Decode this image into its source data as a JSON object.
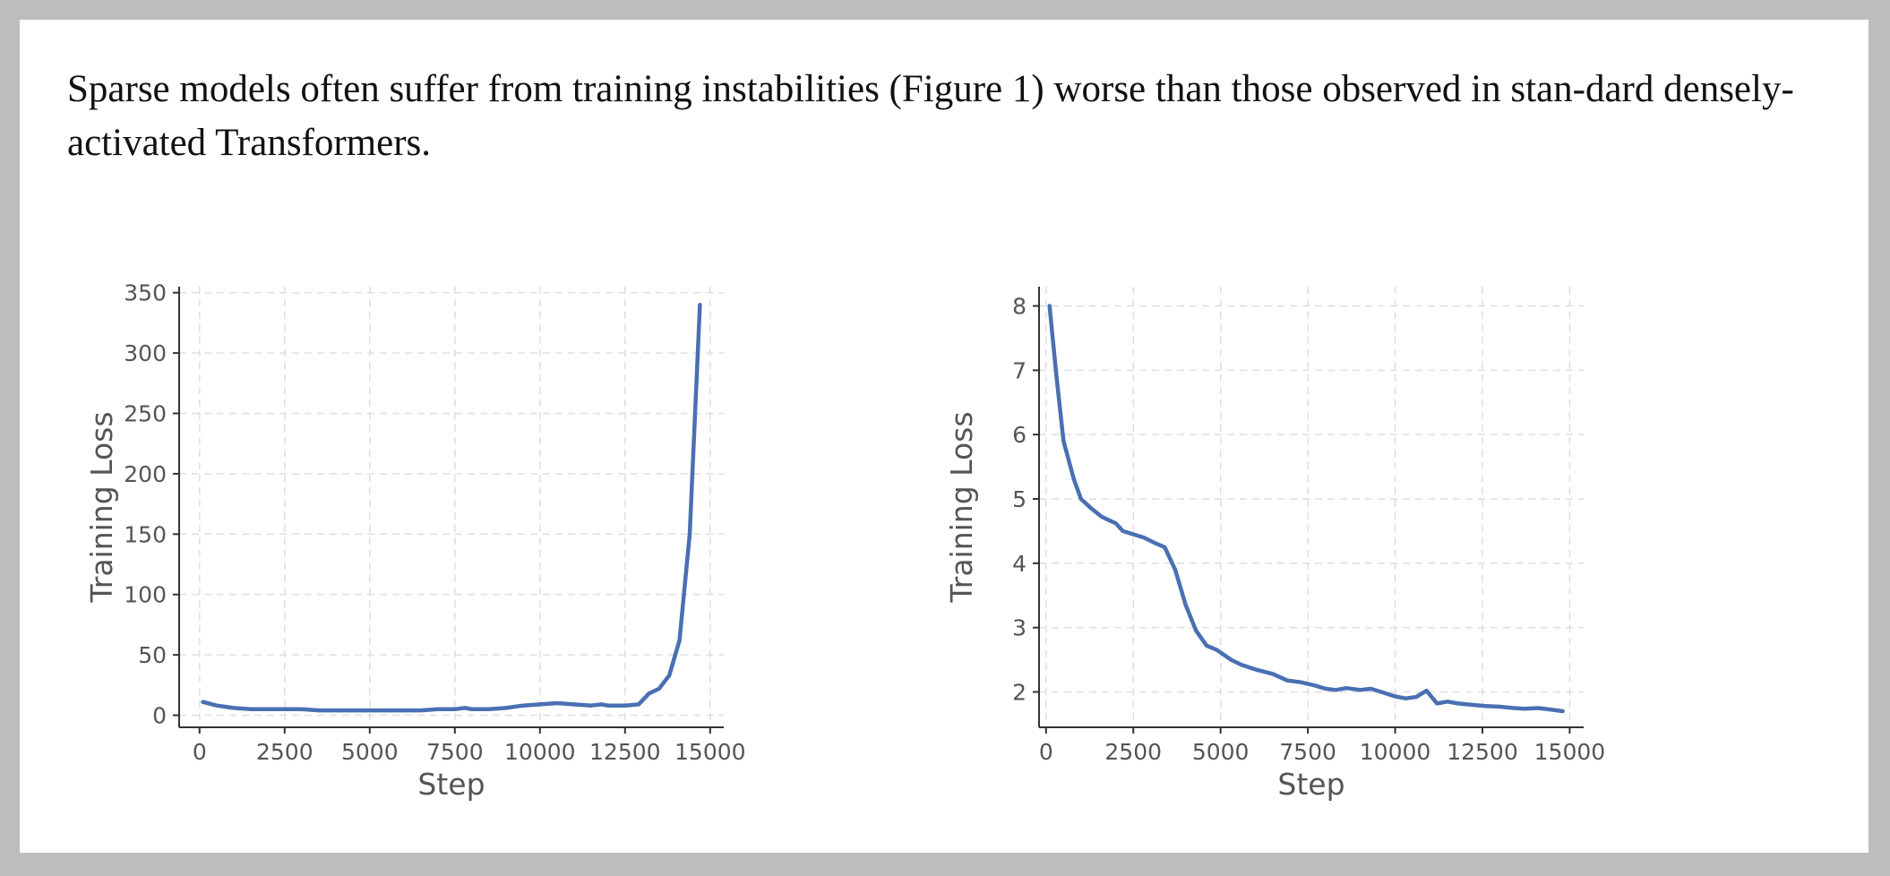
{
  "caption": "Sparse models often suffer from training instabilities (Figure 1) worse than those observed in stan-dard densely-activated Transformers.",
  "chart_data": [
    {
      "type": "line",
      "xlabel": "Step",
      "ylabel": "Training Loss",
      "xlim": [
        -600,
        15400
      ],
      "ylim": [
        -10,
        355
      ],
      "xticks": [
        0,
        2500,
        5000,
        7500,
        10000,
        12500,
        15000
      ],
      "yticks": [
        0,
        50,
        100,
        150,
        200,
        250,
        300,
        350
      ],
      "grid": true,
      "series": [
        {
          "color": "#4a6fb3",
          "x": [
            100,
            500,
            1000,
            1500,
            2000,
            2500,
            3000,
            3500,
            4000,
            4500,
            5000,
            5500,
            6000,
            6500,
            7000,
            7500,
            7800,
            8000,
            8500,
            9000,
            9500,
            10000,
            10500,
            11000,
            11500,
            11800,
            12000,
            12500,
            12900,
            13200,
            13500,
            13800,
            14100,
            14400,
            14700
          ],
          "y": [
            11,
            8,
            6,
            5,
            5,
            5,
            5,
            4,
            4,
            4,
            4,
            4,
            4,
            4,
            5,
            5,
            6,
            5,
            5,
            6,
            8,
            9,
            10,
            9,
            8,
            9,
            8,
            8,
            9,
            18,
            22,
            33,
            62,
            150,
            340
          ]
        }
      ]
    },
    {
      "type": "line",
      "xlabel": "Step",
      "ylabel": "Training Loss",
      "xlim": [
        -200,
        15400
      ],
      "ylim": [
        1.45,
        8.3
      ],
      "xticks": [
        0,
        2500,
        5000,
        7500,
        10000,
        12500,
        15000
      ],
      "yticks": [
        2,
        3,
        4,
        5,
        6,
        7,
        8
      ],
      "grid": true,
      "series": [
        {
          "color": "#4a6fb3",
          "x": [
            100,
            300,
            500,
            800,
            1000,
            1300,
            1600,
            2000,
            2200,
            2500,
            2800,
            3100,
            3400,
            3700,
            4000,
            4300,
            4600,
            4900,
            5300,
            5600,
            6000,
            6500,
            6900,
            7300,
            7700,
            8000,
            8300,
            8600,
            9000,
            9300,
            9600,
            10000,
            10300,
            10600,
            10900,
            11200,
            11500,
            11800,
            12200,
            12600,
            13000,
            13400,
            13700,
            14100,
            14400,
            14800
          ],
          "y": [
            8.0,
            6.9,
            5.9,
            5.3,
            5.0,
            4.85,
            4.72,
            4.62,
            4.5,
            4.45,
            4.4,
            4.32,
            4.25,
            3.9,
            3.35,
            2.95,
            2.72,
            2.65,
            2.5,
            2.42,
            2.35,
            2.28,
            2.18,
            2.15,
            2.1,
            2.05,
            2.03,
            2.06,
            2.03,
            2.05,
            2.0,
            1.93,
            1.9,
            1.92,
            2.02,
            1.82,
            1.85,
            1.82,
            1.8,
            1.78,
            1.77,
            1.75,
            1.74,
            1.75,
            1.73,
            1.7
          ]
        }
      ]
    }
  ]
}
